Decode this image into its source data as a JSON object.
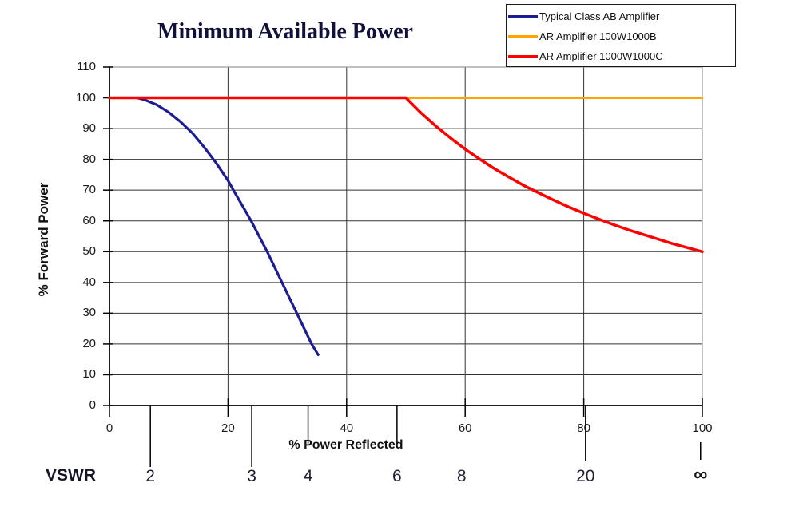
{
  "chart_data": {
    "type": "line",
    "title": "Minimum Available Power",
    "xlabel": "% Power Reflected",
    "ylabel": "% Forward Power",
    "xlim": [
      0,
      100
    ],
    "ylim": [
      0,
      110
    ],
    "x_ticks": [
      0,
      20,
      40,
      60,
      80,
      100
    ],
    "y_ticks": [
      0,
      10,
      20,
      30,
      40,
      50,
      60,
      70,
      80,
      90,
      100,
      110
    ],
    "grid": true,
    "legend_position": "top-right",
    "series": [
      {
        "name": "Typical Class AB Amplifier",
        "color": "#1c1c94",
        "width": 3.2,
        "points": [
          [
            4.6,
            100
          ],
          [
            6,
            99.3
          ],
          [
            8,
            97.7
          ],
          [
            10,
            95.3
          ],
          [
            12,
            92.2
          ],
          [
            14,
            88.5
          ],
          [
            16,
            83.9
          ],
          [
            18,
            78.8
          ],
          [
            20,
            73.1
          ],
          [
            20.9,
            70
          ],
          [
            23.9,
            60
          ],
          [
            26.6,
            50
          ],
          [
            29.1,
            40
          ],
          [
            31.6,
            30
          ],
          [
            34.1,
            20
          ],
          [
            35.2,
            16.5
          ]
        ]
      },
      {
        "name": "AR Amplifier 100W1000B",
        "color": "#ffa300",
        "width": 3,
        "points": [
          [
            0,
            100
          ],
          [
            100,
            100
          ]
        ]
      },
      {
        "name": "AR Amplifier 1000W1000C",
        "color": "#ff0000",
        "width": 3.5,
        "points": [
          [
            0,
            100
          ],
          [
            50,
            100
          ],
          [
            52.5,
            95.2
          ],
          [
            55,
            90.9
          ],
          [
            57.5,
            87
          ],
          [
            60,
            83.3
          ],
          [
            62.5,
            80
          ],
          [
            65,
            76.9
          ],
          [
            67.5,
            74.1
          ],
          [
            70,
            71.4
          ],
          [
            72.5,
            69
          ],
          [
            75,
            66.7
          ],
          [
            77.5,
            64.5
          ],
          [
            80,
            62.5
          ],
          [
            82.5,
            60.6
          ],
          [
            85,
            58.8
          ],
          [
            87.5,
            57.1
          ],
          [
            90,
            55.6
          ],
          [
            92.5,
            54.1
          ],
          [
            95,
            52.6
          ],
          [
            97.5,
            51.3
          ],
          [
            100,
            50
          ]
        ]
      }
    ],
    "vswr_axis": {
      "label": "VSWR",
      "ticks": [
        {
          "label": "2",
          "x": 6.9,
          "line": "long"
        },
        {
          "label": "3",
          "x": 24.0,
          "line": "long"
        },
        {
          "label": "4",
          "x": 33.5,
          "line": "medium"
        },
        {
          "label": "6",
          "x": 48.5,
          "line": "medium"
        },
        {
          "label": "8",
          "x": 59.4,
          "line": "none"
        },
        {
          "label": "20",
          "x": 80.3,
          "line": "through"
        },
        {
          "label": "∞",
          "x": 99.7,
          "line": "dash"
        }
      ]
    }
  },
  "legend": {
    "items": [
      {
        "label": "Typical Class AB Amplifier"
      },
      {
        "label": "AR Amplifier 100W1000B"
      },
      {
        "label": "AR Amplifier 1000W1000C"
      }
    ]
  },
  "colors": {
    "grid": "#333333",
    "axis": "#000000",
    "frame": "#9a9a9a",
    "tick_text": "#1a1a1a"
  }
}
